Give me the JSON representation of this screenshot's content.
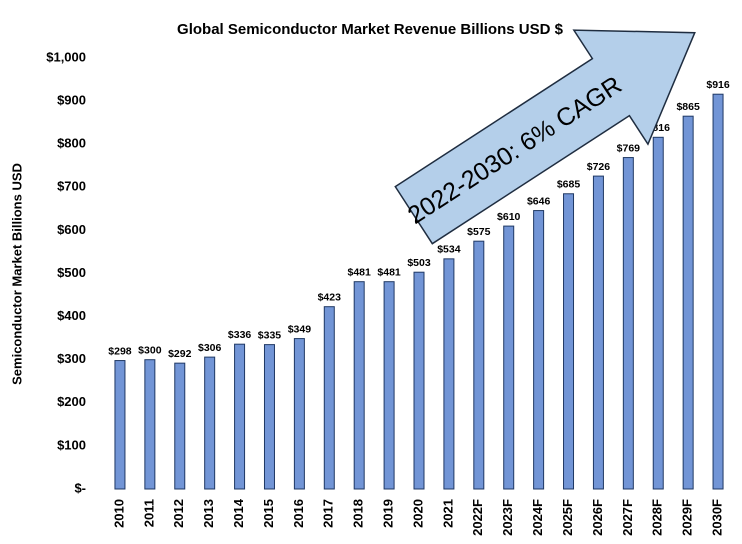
{
  "chart_data": {
    "type": "bar",
    "title": "Global Semiconductor Market Revenue Billions USD $",
    "y_label": "Semiconductor Market Billions USD",
    "annotation": "2022-2030:  6% CAGR",
    "categories": [
      "2010",
      "2011",
      "2012",
      "2013",
      "2014",
      "2015",
      "2016",
      "2017",
      "2018",
      "2019",
      "2020",
      "2021",
      "2022F",
      "2023F",
      "2024F",
      "2025F",
      "2026F",
      "2027F",
      "2028F",
      "2029F",
      "2030F"
    ],
    "values": [
      298,
      300,
      292,
      306,
      336,
      335,
      349,
      423,
      481,
      481,
      503,
      534,
      575,
      610,
      646,
      685,
      726,
      769,
      816,
      865,
      916
    ],
    "value_labels": [
      "$298",
      "$300",
      "$292",
      "$306",
      "$336",
      "$335",
      "$349",
      "$423",
      "$481",
      "$481",
      "$503",
      "$534",
      "$575",
      "$610",
      "$646",
      "$685",
      "$726",
      "$769",
      "$816",
      "$865",
      "$916"
    ],
    "color": "#7295d6",
    "ylim": [
      0,
      1000
    ],
    "yticks": [
      {
        "value": 0,
        "label": "$-"
      },
      {
        "value": 100,
        "label": "$100"
      },
      {
        "value": 200,
        "label": "$200"
      },
      {
        "value": 300,
        "label": "$300"
      },
      {
        "value": 400,
        "label": "$400"
      },
      {
        "value": 500,
        "label": "$500"
      },
      {
        "value": 600,
        "label": "$600"
      },
      {
        "value": 700,
        "label": "$700"
      },
      {
        "value": 800,
        "label": "$800"
      },
      {
        "value": 900,
        "label": "$900"
      },
      {
        "value": 1000,
        "label": "$1,000"
      }
    ],
    "grid": false
  }
}
